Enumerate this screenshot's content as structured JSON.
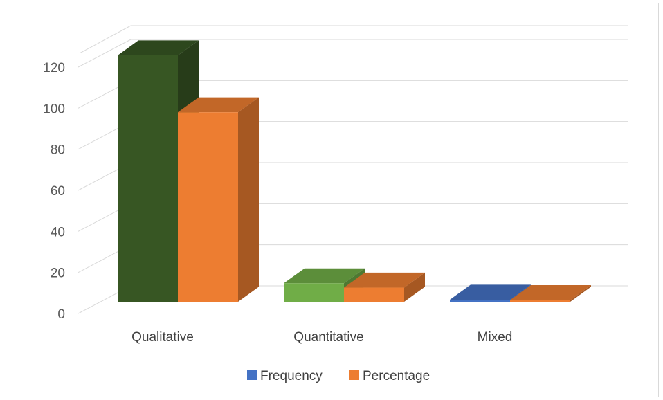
{
  "chart_data": {
    "type": "bar",
    "style": "3d-clustered-column",
    "categories": [
      "Qualitative",
      "Quantitative",
      "Mixed"
    ],
    "series": [
      {
        "name": "Frequency",
        "values": [
          120,
          9,
          1
        ],
        "color": "#4472C4"
      },
      {
        "name": "Percentage",
        "values": [
          92.3,
          6.9,
          0.8
        ],
        "color": "#ED7D31"
      }
    ],
    "bar_colors": {
      "Qualitative": {
        "Frequency": "#375623"
      },
      "Quantitative": {
        "Frequency": "#70AD47"
      },
      "Mixed": {
        "Frequency": "#4472C4"
      }
    },
    "title": "",
    "xlabel": "",
    "ylabel": "",
    "ylim": [
      0,
      120
    ],
    "yticks": [
      0,
      20,
      40,
      60,
      80,
      100,
      120
    ],
    "grid": true,
    "legend_position": "bottom"
  }
}
